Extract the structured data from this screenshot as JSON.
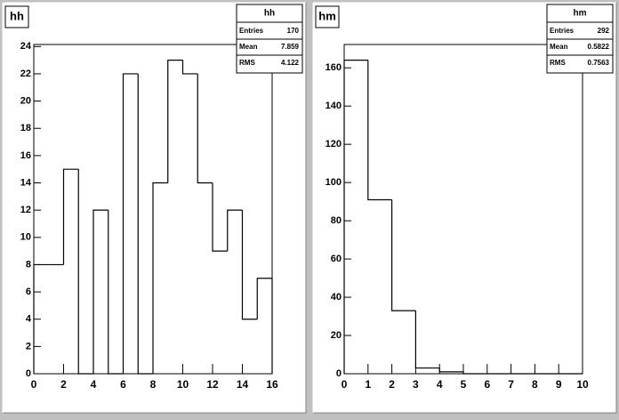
{
  "chart_data": [
    {
      "type": "histogram",
      "title": "hh",
      "bins": [
        0,
        1,
        2,
        3,
        4,
        5,
        6,
        7,
        8,
        9,
        10,
        11,
        12,
        13,
        14,
        15,
        16
      ],
      "values": [
        8,
        8,
        15,
        0,
        12,
        0,
        22,
        0,
        14,
        23,
        22,
        14,
        9,
        12,
        4,
        7
      ],
      "xlim": [
        0,
        16
      ],
      "ylim": [
        0,
        24.15
      ],
      "xticks": [
        0,
        2,
        4,
        6,
        8,
        10,
        12,
        14,
        16
      ],
      "yticks": [
        0,
        2,
        4,
        6,
        8,
        10,
        12,
        14,
        16,
        18,
        20,
        22,
        24
      ],
      "color": "#000000",
      "stats": [
        {
          "label": "Entries",
          "value": 170
        },
        {
          "label": "Mean",
          "value": 7.859
        },
        {
          "label": "RMS",
          "value": 4.122
        }
      ]
    },
    {
      "type": "histogram",
      "title": "hm",
      "bins": [
        0,
        1,
        2,
        3,
        4,
        5,
        6,
        7,
        8,
        9,
        10
      ],
      "values": [
        164,
        91,
        33,
        3,
        1,
        0,
        0,
        0,
        0,
        0
      ],
      "xlim": [
        0,
        10
      ],
      "ylim": [
        0,
        172.2
      ],
      "xticks": [
        0,
        1,
        2,
        3,
        4,
        5,
        6,
        7,
        8,
        9,
        10
      ],
      "yticks": [
        0,
        20,
        40,
        60,
        80,
        100,
        120,
        140,
        160
      ],
      "color": "#000000",
      "stats": [
        {
          "label": "Entries",
          "value": 292
        },
        {
          "label": "Mean",
          "value": 0.5822
        },
        {
          "label": "RMS",
          "value": 0.7563
        }
      ]
    }
  ]
}
